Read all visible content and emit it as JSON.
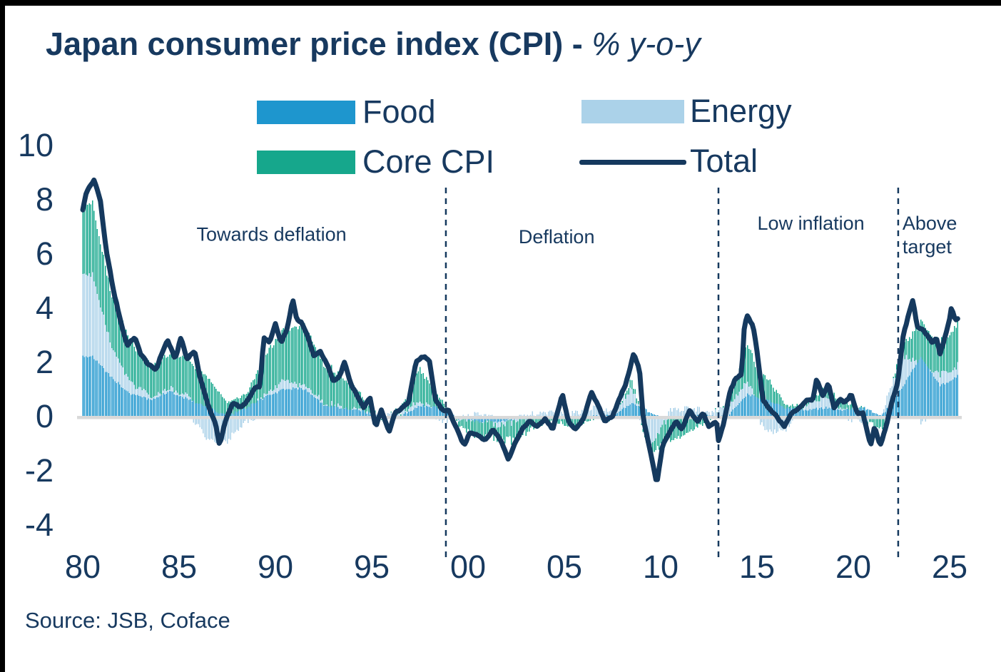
{
  "title": {
    "main": "Japan consumer price index (CPI) - ",
    "suffix": "% y-o-y"
  },
  "legend": {
    "items": [
      {
        "id": "food",
        "label": "Food",
        "color": "#1E96CE",
        "type": "swatch"
      },
      {
        "id": "energy",
        "label": "Energy",
        "color": "#ABD2E9",
        "type": "swatch"
      },
      {
        "id": "core",
        "label": "Core CPI",
        "color": "#16A78C",
        "type": "swatch"
      },
      {
        "id": "total",
        "label": "Total",
        "color": "#15395E",
        "type": "line"
      }
    ]
  },
  "footer": {
    "source": "Source: JSB, Coface"
  },
  "colors": {
    "text_navy": "#17395F",
    "line_navy": "#15395E",
    "food_blue": "#1E96CE",
    "energy_light_blue": "#ABD2E9",
    "core_teal": "#16A78C",
    "zero_line_gray": "#D9D9D9",
    "frame_black": "#000000"
  },
  "chart_data": {
    "type": "stacked-bar+line",
    "title": "Japan consumer price index (CPI) - % y-o-y",
    "xlabel": "",
    "ylabel": "% y-o-y",
    "ylim": [
      -4,
      10
    ],
    "yticks": [
      10,
      8,
      6,
      4,
      2,
      0,
      -2,
      -4
    ],
    "xticks": [
      {
        "label": "80",
        "year": 1980
      },
      {
        "label": "85",
        "year": 1985
      },
      {
        "label": "90",
        "year": 1990
      },
      {
        "label": "95",
        "year": 1995
      },
      {
        "label": "00",
        "year": 2000
      },
      {
        "label": "05",
        "year": 2005
      },
      {
        "label": "10",
        "year": 2010
      },
      {
        "label": "15",
        "year": 2015
      },
      {
        "label": "20",
        "year": 2020
      },
      {
        "label": "25",
        "year": 2025
      }
    ],
    "x_range": [
      1980,
      2025.4
    ],
    "frequency": "monthly bars; series stored as annual anchor values (pp contributions), interpolated",
    "grid": false,
    "legend_position": "top-center",
    "anchor_years_start": 1980,
    "series": [
      {
        "name": "Food",
        "role": "bar",
        "color": "#1E96CE",
        "values": [
          2.2,
          1.4,
          0.8,
          0.6,
          0.9,
          0.6,
          0.3,
          0.0,
          0.3,
          0.7,
          1.0,
          1.0,
          0.4,
          0.3,
          0.2,
          -0.1,
          0.0,
          0.4,
          0.3,
          -0.1,
          -0.2,
          -0.2,
          -0.1,
          -0.1,
          0.0,
          -0.1,
          0.0,
          0.0,
          0.5,
          0.1,
          -0.1,
          0.0,
          0.0,
          0.0,
          0.8,
          0.6,
          0.3,
          0.2,
          0.3,
          0.2,
          0.3,
          0.0,
          1.0,
          2.2,
          1.1,
          1.5
        ]
      },
      {
        "name": "Energy",
        "role": "bar",
        "color": "#ABD2E9",
        "values": [
          3.0,
          1.1,
          0.4,
          0.1,
          0.1,
          0.1,
          -0.9,
          -0.9,
          -0.2,
          0.1,
          0.3,
          0.1,
          0.1,
          0.0,
          0.0,
          0.0,
          0.1,
          0.2,
          -0.2,
          -0.1,
          0.1,
          -0.1,
          -0.1,
          0.1,
          0.1,
          0.1,
          0.3,
          0.1,
          0.6,
          -1.1,
          0.2,
          0.3,
          0.1,
          0.3,
          0.5,
          -0.6,
          -0.5,
          0.2,
          0.4,
          0.0,
          -0.3,
          0.1,
          1.2,
          -0.3,
          0.4,
          0.4
        ]
      },
      {
        "name": "Core CPI",
        "role": "bar",
        "color": "#16A78C",
        "values": [
          2.6,
          1.9,
          1.5,
          1.2,
          1.3,
          1.4,
          1.1,
          0.5,
          0.5,
          1.5,
          1.9,
          2.2,
          1.4,
          1.1,
          0.5,
          -0.1,
          0.1,
          1.2,
          0.4,
          -0.2,
          -0.6,
          -0.5,
          -0.7,
          -0.3,
          -0.2,
          -0.3,
          -0.1,
          -0.1,
          0.3,
          -0.4,
          -0.8,
          -0.6,
          -0.1,
          0.1,
          1.4,
          0.8,
          0.1,
          0.1,
          0.3,
          0.3,
          0.0,
          -0.5,
          0.4,
          1.4,
          1.2,
          1.6
        ]
      },
      {
        "name": "Total",
        "role": "line",
        "color": "#15395E",
        "points": [
          [
            1980.0,
            7.6
          ],
          [
            1980.2,
            8.3
          ],
          [
            1980.6,
            8.7
          ],
          [
            1980.9,
            8.0
          ],
          [
            1981.2,
            6.2
          ],
          [
            1981.6,
            4.6
          ],
          [
            1982.0,
            3.4
          ],
          [
            1982.3,
            2.6
          ],
          [
            1982.7,
            2.9
          ],
          [
            1983.0,
            2.3
          ],
          [
            1983.4,
            1.9
          ],
          [
            1983.8,
            1.7
          ],
          [
            1984.1,
            2.3
          ],
          [
            1984.4,
            2.8
          ],
          [
            1984.8,
            2.1
          ],
          [
            1985.1,
            2.9
          ],
          [
            1985.4,
            2.1
          ],
          [
            1985.8,
            2.4
          ],
          [
            1986.1,
            1.4
          ],
          [
            1986.5,
            0.4
          ],
          [
            1986.9,
            -0.3
          ],
          [
            1987.1,
            -1.1
          ],
          [
            1987.4,
            -0.2
          ],
          [
            1987.8,
            0.5
          ],
          [
            1988.2,
            0.3
          ],
          [
            1988.6,
            0.6
          ],
          [
            1988.9,
            1.0
          ],
          [
            1989.2,
            1.1
          ],
          [
            1989.4,
            2.9
          ],
          [
            1989.7,
            2.7
          ],
          [
            1990.0,
            3.4
          ],
          [
            1990.3,
            2.7
          ],
          [
            1990.6,
            3.2
          ],
          [
            1990.9,
            4.3
          ],
          [
            1991.1,
            3.6
          ],
          [
            1991.4,
            3.4
          ],
          [
            1991.7,
            2.9
          ],
          [
            1992.0,
            2.2
          ],
          [
            1992.3,
            2.4
          ],
          [
            1992.7,
            1.9
          ],
          [
            1993.0,
            1.3
          ],
          [
            1993.3,
            1.4
          ],
          [
            1993.6,
            2.0
          ],
          [
            1993.9,
            1.2
          ],
          [
            1994.2,
            0.8
          ],
          [
            1994.6,
            0.3
          ],
          [
            1994.9,
            0.7
          ],
          [
            1995.2,
            -0.4
          ],
          [
            1995.5,
            0.2
          ],
          [
            1995.9,
            -0.6
          ],
          [
            1996.2,
            0.1
          ],
          [
            1996.6,
            0.3
          ],
          [
            1996.9,
            0.5
          ],
          [
            1997.3,
            2.0
          ],
          [
            1997.7,
            2.2
          ],
          [
            1998.0,
            2.0
          ],
          [
            1998.3,
            0.6
          ],
          [
            1998.7,
            0.2
          ],
          [
            1999.0,
            0.2
          ],
          [
            1999.3,
            -0.3
          ],
          [
            1999.8,
            -1.1
          ],
          [
            2000.1,
            -0.6
          ],
          [
            2000.5,
            -0.7
          ],
          [
            2000.9,
            -0.9
          ],
          [
            2001.3,
            -0.5
          ],
          [
            2001.7,
            -0.9
          ],
          [
            2002.1,
            -1.6
          ],
          [
            2002.5,
            -0.9
          ],
          [
            2002.9,
            -0.4
          ],
          [
            2003.2,
            -0.2
          ],
          [
            2003.6,
            -0.4
          ],
          [
            2004.0,
            -0.1
          ],
          [
            2004.4,
            -0.5
          ],
          [
            2004.9,
            0.8
          ],
          [
            2005.2,
            -0.2
          ],
          [
            2005.6,
            -0.5
          ],
          [
            2006.0,
            -0.1
          ],
          [
            2006.4,
            0.9
          ],
          [
            2006.8,
            0.3
          ],
          [
            2007.1,
            -0.2
          ],
          [
            2007.5,
            0.0
          ],
          [
            2007.9,
            0.7
          ],
          [
            2008.2,
            1.2
          ],
          [
            2008.6,
            2.3
          ],
          [
            2008.9,
            1.7
          ],
          [
            2009.1,
            -0.1
          ],
          [
            2009.4,
            -1.1
          ],
          [
            2009.8,
            -2.5
          ],
          [
            2010.1,
            -1.1
          ],
          [
            2010.4,
            -0.7
          ],
          [
            2010.8,
            -0.2
          ],
          [
            2011.1,
            -0.5
          ],
          [
            2011.5,
            0.2
          ],
          [
            2011.9,
            -0.2
          ],
          [
            2012.2,
            0.1
          ],
          [
            2012.5,
            -0.4
          ],
          [
            2012.9,
            -0.2
          ],
          [
            2013.0,
            -0.9
          ],
          [
            2013.25,
            -0.35
          ],
          [
            2013.6,
            0.9
          ],
          [
            2013.9,
            1.4
          ],
          [
            2014.2,
            1.5
          ],
          [
            2014.35,
            3.4
          ],
          [
            2014.5,
            3.7
          ],
          [
            2014.8,
            3.3
          ],
          [
            2015.0,
            2.4
          ],
          [
            2015.3,
            0.6
          ],
          [
            2015.7,
            0.2
          ],
          [
            2016.0,
            0.0
          ],
          [
            2016.4,
            -0.4
          ],
          [
            2016.8,
            0.1
          ],
          [
            2017.2,
            0.3
          ],
          [
            2017.6,
            0.6
          ],
          [
            2017.9,
            0.6
          ],
          [
            2018.1,
            1.4
          ],
          [
            2018.4,
            0.7
          ],
          [
            2018.7,
            1.2
          ],
          [
            2019.0,
            0.3
          ],
          [
            2019.3,
            0.6
          ],
          [
            2019.6,
            0.5
          ],
          [
            2019.9,
            0.8
          ],
          [
            2020.2,
            0.1
          ],
          [
            2020.5,
            0.1
          ],
          [
            2020.9,
            -1.1
          ],
          [
            2021.1,
            -0.4
          ],
          [
            2021.4,
            -1.1
          ],
          [
            2021.7,
            -0.4
          ],
          [
            2022.0,
            0.5
          ],
          [
            2022.3,
            1.2
          ],
          [
            2022.6,
            3.0
          ],
          [
            2022.9,
            3.8
          ],
          [
            2023.1,
            4.3
          ],
          [
            2023.3,
            3.3
          ],
          [
            2023.6,
            3.2
          ],
          [
            2023.9,
            2.9
          ],
          [
            2024.1,
            2.7
          ],
          [
            2024.3,
            2.9
          ],
          [
            2024.5,
            2.3
          ],
          [
            2024.8,
            3.0
          ],
          [
            2025.0,
            3.6
          ],
          [
            2025.1,
            4.0
          ],
          [
            2025.3,
            3.5
          ],
          [
            2025.4,
            3.6
          ]
        ]
      }
    ],
    "dividers": {
      "style": "dashed",
      "color": "#15395E",
      "years": [
        1998.85,
        2013.0,
        2022.33
      ]
    },
    "annotations": [
      {
        "label": "Towards deflation",
        "lines": [
          "Towards deflation"
        ],
        "year": 1989.8,
        "value": 6.7,
        "anchor": "middle"
      },
      {
        "label": "Deflation",
        "lines": [
          "Deflation"
        ],
        "year": 2004.6,
        "value": 6.6,
        "anchor": "middle"
      },
      {
        "label": "Low inflation",
        "lines": [
          "Low inflation"
        ],
        "year": 2017.8,
        "value": 7.1,
        "anchor": "middle"
      },
      {
        "label": "Above target",
        "lines": [
          "Above",
          "target"
        ],
        "year": 2022.55,
        "value": 7.1,
        "anchor": "start"
      }
    ],
    "zero_line_color": "#D9D9D9"
  }
}
